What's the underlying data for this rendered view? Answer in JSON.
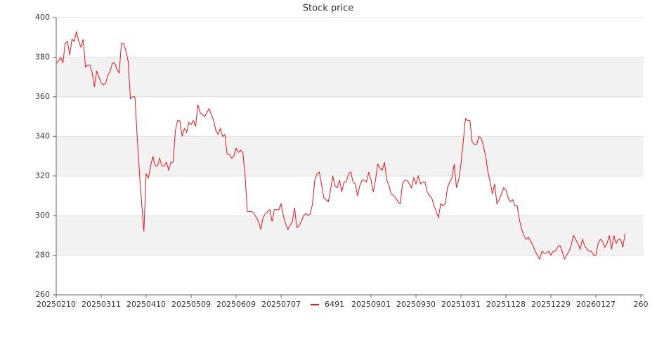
{
  "chart_data": {
    "type": "line",
    "title": "Stock price",
    "x": [
      0,
      1,
      2,
      3,
      4,
      5,
      6,
      7,
      8,
      9,
      10,
      11,
      12,
      13,
      14,
      15,
      16,
      17,
      18,
      19,
      20,
      21,
      22,
      23,
      24,
      25,
      26,
      27,
      28,
      29,
      30,
      31,
      32,
      33,
      34,
      35,
      36,
      37,
      38,
      39,
      40,
      41,
      42,
      43,
      44,
      45,
      46,
      47,
      48,
      49,
      50,
      51,
      52,
      53,
      54,
      55,
      56,
      57,
      58,
      59,
      60,
      61,
      62,
      63,
      64,
      65,
      66,
      67,
      68,
      69,
      70,
      71,
      72,
      73,
      74,
      75,
      76,
      77,
      78,
      79,
      80,
      81,
      82,
      83,
      84,
      85,
      86,
      87,
      88,
      89,
      90,
      91,
      92,
      93,
      94,
      95,
      96,
      97,
      98,
      99,
      100,
      101,
      102,
      103,
      104,
      105,
      106,
      107,
      108,
      109,
      110,
      111,
      112,
      113,
      114,
      115,
      116,
      117,
      118,
      119,
      120,
      121,
      122,
      123,
      124,
      125,
      126,
      127,
      128,
      129,
      130,
      131,
      132,
      133,
      134,
      135,
      136,
      137,
      138,
      139,
      140,
      141,
      142,
      143,
      144,
      145,
      146,
      147,
      148,
      149,
      150,
      151,
      152,
      153,
      154,
      155,
      156,
      157,
      158,
      159,
      160,
      161,
      162,
      163,
      164,
      165,
      166,
      167,
      168,
      169,
      170,
      171,
      172,
      173,
      174,
      175,
      176,
      177,
      178,
      179,
      180,
      181,
      182,
      183,
      184,
      185,
      186,
      187,
      188,
      189,
      190,
      191,
      192,
      193,
      194,
      195,
      196,
      197,
      198,
      199,
      200,
      201,
      202,
      203,
      204,
      205,
      206,
      207,
      208,
      209,
      210,
      211,
      212,
      213,
      214,
      215,
      216,
      217,
      218,
      219,
      220,
      221,
      222,
      223,
      224,
      225,
      226,
      227,
      228,
      229,
      230,
      231,
      232,
      233,
      234,
      235,
      236,
      237,
      238,
      239,
      240,
      241,
      242,
      243,
      244,
      245,
      246,
      247,
      248,
      249,
      250,
      251,
      252,
      253
    ],
    "series": [
      {
        "name": "6491",
        "color": "#e8141c",
        "values": [
          377,
          378,
          380,
          377,
          387,
          388,
          381,
          389,
          388,
          393,
          388,
          385,
          389,
          375,
          376,
          376,
          372,
          365,
          373,
          370,
          367,
          366,
          367,
          371,
          373,
          377,
          377,
          374,
          372,
          387,
          387,
          383,
          378,
          359,
          360,
          360,
          340,
          322,
          306,
          292,
          321,
          319,
          325,
          330,
          325,
          325,
          329,
          325,
          325,
          327,
          323,
          327,
          327,
          343,
          348,
          348,
          340,
          344,
          342,
          347,
          346,
          348,
          345,
          356,
          352,
          351,
          350,
          352,
          354,
          351,
          348,
          343,
          341,
          344,
          340,
          341,
          331,
          331,
          329,
          330,
          334,
          332,
          333,
          332,
          320,
          302,
          302,
          302,
          301,
          299,
          297,
          293,
          299,
          301,
          302,
          303,
          297,
          303,
          303,
          303,
          306,
          300,
          296,
          293,
          295,
          297,
          304,
          294,
          295,
          297,
          300,
          301,
          300,
          301,
          306,
          318,
          321,
          322,
          316,
          309,
          308,
          307,
          313,
          320,
          315,
          314,
          318,
          312,
          317,
          317,
          321,
          322,
          317,
          316,
          310,
          315,
          318,
          318,
          317,
          322,
          318,
          312,
          318,
          326,
          324,
          323,
          327,
          318,
          315,
          311,
          310,
          309,
          307,
          306,
          316,
          318,
          318,
          316,
          314,
          319,
          316,
          320,
          316,
          317,
          317,
          312,
          310,
          309,
          305,
          302,
          299,
          306,
          305,
          306,
          314,
          317,
          319,
          326,
          314,
          318,
          326,
          337,
          349,
          348,
          348,
          337,
          336,
          336,
          340,
          339,
          335,
          330,
          322,
          317,
          311,
          316,
          306,
          308,
          311,
          314,
          313,
          309,
          307,
          308,
          305,
          305,
          298,
          293,
          290,
          288,
          289,
          287,
          285,
          282,
          280,
          278,
          282,
          281,
          281,
          282,
          280,
          282,
          282,
          284,
          285,
          282,
          278,
          280,
          282,
          285,
          290,
          288,
          286,
          283,
          288,
          285,
          283,
          282,
          282,
          280,
          280,
          286,
          288,
          287,
          284,
          286,
          290,
          283,
          290,
          286,
          288,
          288,
          284,
          291
        ]
      }
    ],
    "xlim": [
      0,
      261.25
    ],
    "xticks": [
      {
        "value": 0,
        "label": "20250210"
      },
      {
        "value": 20,
        "label": "20250311"
      },
      {
        "value": 40,
        "label": "20250410"
      },
      {
        "value": 60,
        "label": "20250509"
      },
      {
        "value": 80,
        "label": "20250609"
      },
      {
        "value": 100,
        "label": "20250707"
      },
      {
        "value": 140,
        "label": "20250901"
      },
      {
        "value": 160,
        "label": "20250930"
      },
      {
        "value": 180,
        "label": "20251031"
      },
      {
        "value": 200,
        "label": "20251128"
      },
      {
        "value": 220,
        "label": "20251229"
      },
      {
        "value": 240,
        "label": "20260127"
      },
      260
    ],
    "ylim": [
      260,
      400
    ],
    "yticks": [
      260,
      280,
      300,
      320,
      340,
      360,
      380,
      400
    ],
    "grid": true,
    "bands": "#f2f2f2",
    "legend": "bottom"
  }
}
